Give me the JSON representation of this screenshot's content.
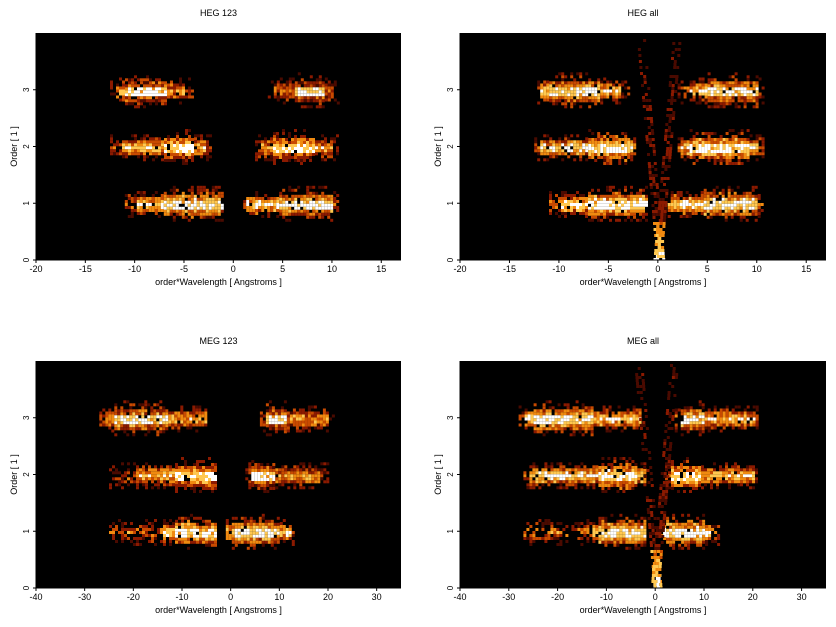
{
  "chart_data": [
    {
      "type": "heatmap",
      "title": "HEG 123",
      "xlabel": "order*Wavelength [ Angstroms ]",
      "ylabel": "Order [ 1 ]",
      "xlim": [
        -20,
        17
      ],
      "ylim": [
        0,
        4
      ],
      "xticks": [
        -20,
        -15,
        -10,
        -5,
        0,
        5,
        10,
        15
      ],
      "yticks": [
        0,
        1,
        2,
        3
      ],
      "colormap": [
        "#000000",
        "#4a0a00",
        "#8b1a00",
        "#c84a00",
        "#f08a10",
        "#ffc850",
        "#ffffff"
      ],
      "bands": [
        {
          "order": 1,
          "x_range": [
            -11,
            -1.2
          ],
          "core": [
            -10,
            -1.5
          ],
          "bright_x": [
            -7.2,
            -1.2
          ],
          "intensity": 0.95
        },
        {
          "order": 1,
          "x_range": [
            1,
            10.5
          ],
          "core": [
            1.2,
            10
          ],
          "bright_x": [
            4.5,
            10
          ],
          "intensity": 0.95
        },
        {
          "order": 2,
          "x_range": [
            -12.5,
            -2.2
          ],
          "core": [
            -11.5,
            -3
          ],
          "bright_x": [
            -7.2,
            -4
          ],
          "intensity": 0.85
        },
        {
          "order": 2,
          "x_range": [
            2.2,
            10.5
          ],
          "core": [
            2.5,
            10
          ],
          "bright_x": [
            4,
            8
          ],
          "intensity": 0.8
        },
        {
          "order": 3,
          "x_range": [
            -12.5,
            -4
          ],
          "core": [
            -12,
            -5
          ],
          "bright_x": [
            -11,
            -7
          ],
          "intensity": 0.7
        },
        {
          "order": 3,
          "x_range": [
            3.5,
            10.5
          ],
          "core": [
            4,
            10
          ],
          "bright_x": [
            6,
            9
          ],
          "intensity": 0.6
        }
      ]
    },
    {
      "type": "heatmap",
      "title": "HEG all",
      "xlabel": "order*Wavelength [ Angstroms ]",
      "ylabel": "Order [ 1 ]",
      "xlim": [
        -20,
        17
      ],
      "ylim": [
        0,
        4
      ],
      "xticks": [
        -20,
        -15,
        -10,
        -5,
        0,
        5,
        10,
        15
      ],
      "yticks": [
        0,
        1,
        2,
        3
      ],
      "colormap": [
        "#000000",
        "#4a0a00",
        "#8b1a00",
        "#c84a00",
        "#f08a10",
        "#ffc850",
        "#ffffff"
      ],
      "bands": [
        {
          "order": 1,
          "x_range": [
            -11,
            -1.2
          ],
          "core": [
            -10,
            -1.5
          ],
          "bright_x": [
            -7.2,
            -1.2
          ],
          "intensity": 1.0
        },
        {
          "order": 1,
          "x_range": [
            1,
            10.5
          ],
          "core": [
            1.2,
            10
          ],
          "bright_x": [
            4.5,
            10
          ],
          "intensity": 1.0
        },
        {
          "order": 2,
          "x_range": [
            -12.5,
            -2.2
          ],
          "core": [
            -12,
            -2.5
          ],
          "bright_x": [
            -7.2,
            -3
          ],
          "intensity": 0.95
        },
        {
          "order": 2,
          "x_range": [
            2,
            10.5
          ],
          "core": [
            2.2,
            10
          ],
          "bright_x": [
            3,
            9
          ],
          "intensity": 0.95
        },
        {
          "order": 3,
          "x_range": [
            -12.5,
            -3
          ],
          "core": [
            -12,
            -4
          ],
          "bright_x": [
            -11,
            -6
          ],
          "intensity": 0.9
        },
        {
          "order": 3,
          "x_range": [
            2,
            10.5
          ],
          "core": [
            3,
            10
          ],
          "bright_x": [
            5,
            10
          ],
          "intensity": 0.85
        }
      ],
      "zero_order_v": {
        "x_center": 0,
        "half_width_at_top": 12,
        "extends_to_order": 4
      }
    },
    {
      "type": "heatmap",
      "title": "MEG 123",
      "xlabel": "order*Wavelength [ Angstroms ]",
      "ylabel": "Order [ 1 ]",
      "xlim": [
        -40,
        35
      ],
      "ylim": [
        0,
        4
      ],
      "xticks": [
        -40,
        -30,
        -20,
        -10,
        0,
        10,
        20,
        30
      ],
      "yticks": [
        0,
        1,
        2,
        3
      ],
      "colormap": [
        "#000000",
        "#4a0a00",
        "#8b1a00",
        "#c84a00",
        "#f08a10",
        "#ffc850",
        "#ffffff"
      ],
      "bands": [
        {
          "order": 1,
          "x_range": [
            -25,
            -3
          ],
          "core": [
            -14,
            -3
          ],
          "bright_x": [
            -12,
            -3
          ],
          "intensity": 0.95
        },
        {
          "order": 1,
          "x_range": [
            -1,
            13
          ],
          "core": [
            -1,
            12
          ],
          "bright_x": [
            0,
            10
          ],
          "intensity": 0.9
        },
        {
          "order": 2,
          "x_range": [
            -25,
            -3
          ],
          "core": [
            -20,
            -3
          ],
          "bright_x": [
            -12,
            -3
          ],
          "intensity": 0.8
        },
        {
          "order": 2,
          "x_range": [
            3,
            20
          ],
          "core": [
            4,
            18
          ],
          "bright_x": [
            4,
            9
          ],
          "intensity": 0.7
        },
        {
          "order": 3,
          "x_range": [
            -27,
            -5
          ],
          "core": [
            -26,
            -5
          ],
          "bright_x": [
            -24,
            -13
          ],
          "intensity": 0.8
        },
        {
          "order": 3,
          "x_range": [
            6,
            21
          ],
          "core": [
            7,
            20
          ],
          "bright_x": [
            7,
            11
          ],
          "intensity": 0.7
        }
      ]
    },
    {
      "type": "heatmap",
      "title": "MEG all",
      "xlabel": "order*Wavelength [ Angstroms ]",
      "ylabel": "Order [ 1 ]",
      "xlim": [
        -40,
        35
      ],
      "ylim": [
        0,
        4
      ],
      "xticks": [
        -40,
        -30,
        -20,
        -10,
        0,
        10,
        20,
        30
      ],
      "yticks": [
        0,
        1,
        2,
        3
      ],
      "colormap": [
        "#000000",
        "#4a0a00",
        "#8b1a00",
        "#c84a00",
        "#f08a10",
        "#ffc850",
        "#ffffff"
      ],
      "bands": [
        {
          "order": 1,
          "x_range": [
            -27,
            -2
          ],
          "core": [
            -13,
            -2
          ],
          "bright_x": [
            -12,
            -2
          ],
          "intensity": 1.0
        },
        {
          "order": 1,
          "x_range": [
            1,
            13
          ],
          "core": [
            1,
            11
          ],
          "bright_x": [
            2,
            10
          ],
          "intensity": 1.0
        },
        {
          "order": 2,
          "x_range": [
            -27,
            -2
          ],
          "core": [
            -26,
            -2
          ],
          "bright_x": [
            -12,
            -4
          ],
          "intensity": 0.95
        },
        {
          "order": 2,
          "x_range": [
            2,
            21
          ],
          "core": [
            3,
            20
          ],
          "bright_x": [
            3,
            9
          ],
          "intensity": 0.9
        },
        {
          "order": 3,
          "x_range": [
            -28,
            -3
          ],
          "core": [
            -27,
            -3
          ],
          "bright_x": [
            -25,
            -13
          ],
          "intensity": 0.95
        },
        {
          "order": 3,
          "x_range": [
            4,
            21
          ],
          "core": [
            5,
            20
          ],
          "bright_x": [
            5,
            10
          ],
          "intensity": 0.85
        }
      ],
      "zero_order_v": {
        "x_center": 0,
        "half_width_at_top": 24,
        "extends_to_order": 4
      }
    }
  ]
}
